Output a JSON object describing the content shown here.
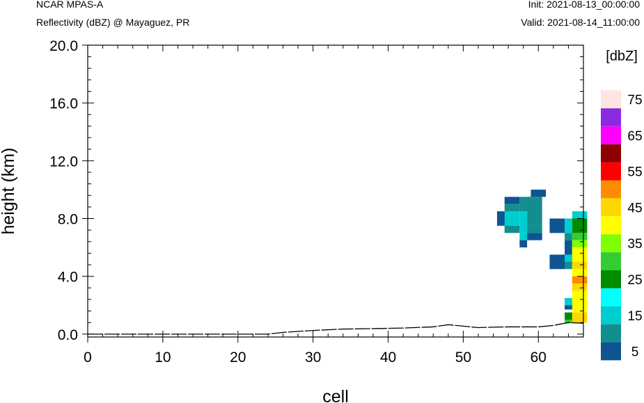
{
  "header": {
    "model": "NCAR MPAS-A",
    "field": "Reflectivity (dBZ) @ Mayaguez, PR",
    "init": "Init: 2021-08-13_00:00:00",
    "valid": "Valid: 2021-08-14_11:00:00"
  },
  "chart_data": {
    "type": "heatmap",
    "xlabel": "cell",
    "ylabel": "height (km)",
    "xlim": [
      0,
      66
    ],
    "ylim": [
      0,
      20
    ],
    "xticks": [
      0,
      10,
      20,
      30,
      40,
      50,
      60
    ],
    "xtick_labels": [
      "0",
      "10",
      "20",
      "30",
      "40",
      "50",
      "60"
    ],
    "yticks": [
      0,
      4,
      8,
      12,
      16,
      20
    ],
    "ytick_labels": [
      "0.0",
      "4.0",
      "8.0",
      "12.0",
      "16.0",
      "20.0"
    ],
    "colorbar": {
      "title": "[dbZ]",
      "levels": [
        5,
        10,
        15,
        20,
        25,
        30,
        35,
        40,
        45,
        50,
        55,
        60,
        65,
        70,
        75
      ],
      "tick_labels": [
        "5",
        "15",
        "25",
        "35",
        "45",
        "55",
        "65",
        "75"
      ],
      "colors": [
        "#0e5491",
        "#138e8f",
        "#00cdcd",
        "#00ffff",
        "#008b00",
        "#32cd32",
        "#7fff00",
        "#ffff00",
        "#ffd700",
        "#ff8c00",
        "#ff0000",
        "#8b0000",
        "#ff00ff",
        "#8a2be2",
        "#ffe4e1"
      ]
    },
    "cells": [
      {
        "x": 54.5,
        "x2": 56.5,
        "y": 7.5,
        "y2": 8.5,
        "v": 5
      },
      {
        "x": 55.5,
        "x2": 57.5,
        "y": 9.0,
        "y2": 9.5,
        "v": 5
      },
      {
        "x": 59.0,
        "x2": 61.0,
        "y": 9.5,
        "y2": 10.0,
        "v": 5
      },
      {
        "x": 55.5,
        "x2": 57.5,
        "y": 8.5,
        "y2": 9.0,
        "v": 10
      },
      {
        "x": 57.5,
        "x2": 59.5,
        "y": 8.5,
        "y2": 9.5,
        "v": 10
      },
      {
        "x": 58.5,
        "x2": 60.5,
        "y": 7.5,
        "y2": 9.5,
        "v": 10
      },
      {
        "x": 55.5,
        "x2": 57.5,
        "y": 7.5,
        "y2": 8.5,
        "v": 15
      },
      {
        "x": 55.5,
        "x2": 57.5,
        "y": 7.0,
        "y2": 7.5,
        "v": 10
      },
      {
        "x": 57.5,
        "x2": 58.5,
        "y": 7.0,
        "y2": 8.5,
        "v": 15
      },
      {
        "x": 58.5,
        "x2": 60.5,
        "y": 7.0,
        "y2": 7.5,
        "v": 10
      },
      {
        "x": 58.5,
        "x2": 60.5,
        "y": 6.5,
        "y2": 7.0,
        "v": 5
      },
      {
        "x": 57.5,
        "x2": 58.5,
        "y": 6.5,
        "y2": 7.0,
        "v": 15
      },
      {
        "x": 57.5,
        "x2": 58.5,
        "y": 6.0,
        "y2": 6.5,
        "v": 5
      },
      {
        "x": 61.5,
        "x2": 63.5,
        "y": 7.0,
        "y2": 8.0,
        "v": 5
      },
      {
        "x": 63.5,
        "x2": 64.5,
        "y": 7.0,
        "y2": 8.0,
        "v": 15
      },
      {
        "x": 63.5,
        "x2": 64.5,
        "y": 6.5,
        "y2": 7.0,
        "v": 10
      },
      {
        "x": 63.5,
        "x2": 64.5,
        "y": 5.0,
        "y2": 6.5,
        "v": 5
      },
      {
        "x": 61.5,
        "x2": 63.5,
        "y": 4.5,
        "y2": 5.5,
        "v": 5
      },
      {
        "x": 63.5,
        "x2": 64.5,
        "y": 5.0,
        "y2": 5.5,
        "v": 15
      },
      {
        "x": 63.5,
        "x2": 64.5,
        "y": 4.5,
        "y2": 5.0,
        "v": 10
      },
      {
        "x": 64.5,
        "x2": 65.5,
        "y": 8.0,
        "y2": 8.5,
        "v": 15
      },
      {
        "x": 65.5,
        "x2": 66.5,
        "y": 8.0,
        "y2": 8.5,
        "v": 15
      },
      {
        "x": 64.5,
        "x2": 66.5,
        "y": 7.0,
        "y2": 8.0,
        "v": 25
      },
      {
        "x": 64.5,
        "x2": 66.5,
        "y": 6.5,
        "y2": 7.0,
        "v": 30
      },
      {
        "x": 64.5,
        "x2": 66.5,
        "y": 6.0,
        "y2": 6.5,
        "v": 35
      },
      {
        "x": 64.5,
        "x2": 66.5,
        "y": 5.0,
        "y2": 6.0,
        "v": 40
      },
      {
        "x": 64.5,
        "x2": 66.5,
        "y": 4.5,
        "y2": 5.0,
        "v": 45
      },
      {
        "x": 64.5,
        "x2": 66.5,
        "y": 4.0,
        "y2": 4.5,
        "v": 40
      },
      {
        "x": 64.5,
        "x2": 66.5,
        "y": 3.5,
        "y2": 4.0,
        "v": 50
      },
      {
        "x": 64.5,
        "x2": 66.5,
        "y": 3.0,
        "y2": 3.5,
        "v": 45
      },
      {
        "x": 64.5,
        "x2": 66.5,
        "y": 2.5,
        "y2": 3.0,
        "v": 40
      },
      {
        "x": 64.5,
        "x2": 66.5,
        "y": 1.5,
        "y2": 2.5,
        "v": 40
      },
      {
        "x": 64.5,
        "x2": 66.5,
        "y": 0.8,
        "y2": 1.5,
        "v": 45
      },
      {
        "x": 63.5,
        "x2": 64.5,
        "y": 2.0,
        "y2": 2.5,
        "v": 15
      },
      {
        "x": 63.5,
        "x2": 64.5,
        "y": 1.7,
        "y2": 2.0,
        "v": 5
      },
      {
        "x": 63.5,
        "x2": 64.5,
        "y": 1.0,
        "y2": 1.5,
        "v": 25
      },
      {
        "x": 63.5,
        "x2": 64.5,
        "y": 0.75,
        "y2": 1.0,
        "v": 30
      }
    ],
    "terrain": {
      "x": [
        0,
        24,
        26,
        30,
        34,
        38,
        42,
        46,
        48,
        50,
        52,
        54,
        56,
        58,
        60,
        62,
        64,
        66
      ],
      "y": [
        0,
        0,
        0.12,
        0.25,
        0.35,
        0.38,
        0.42,
        0.5,
        0.65,
        0.55,
        0.45,
        0.48,
        0.5,
        0.5,
        0.5,
        0.6,
        0.8,
        0.75
      ]
    }
  }
}
